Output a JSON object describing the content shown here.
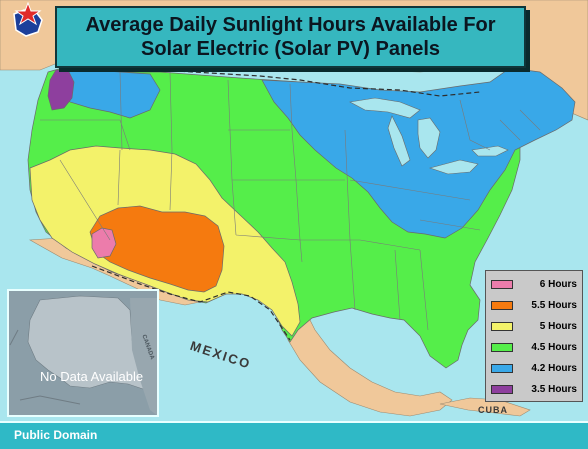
{
  "title": {
    "line1": "Average Daily Sunlight Hours Available For",
    "line2": "Solar Electric (Solar PV) Panels"
  },
  "legend": [
    {
      "label": "6 Hours",
      "color": "#ec7cab"
    },
    {
      "label": "5.5 Hours",
      "color": "#f57a0f"
    },
    {
      "label": "5 Hours",
      "color": "#f3f26a"
    },
    {
      "label": "4.5 Hours",
      "color": "#55ee4a"
    },
    {
      "label": "4.2 Hours",
      "color": "#39a8e8"
    },
    {
      "label": "3.5 Hours",
      "color": "#8e3f9e"
    }
  ],
  "map": {
    "country_label_mexico": "MEXICO",
    "country_label_cuba": "CUBA",
    "country_label_canada": "CANADA",
    "alaska_note": "No Data Available"
  },
  "footer": {
    "credit": "Public Domain"
  },
  "colors": {
    "ocean": "#a9e6ee",
    "land_other": "#f0c89a",
    "title_bg": "#36b7bf",
    "footer_bg": "#2fb9c6",
    "alaska_bg": "#8b9ea8"
  }
}
